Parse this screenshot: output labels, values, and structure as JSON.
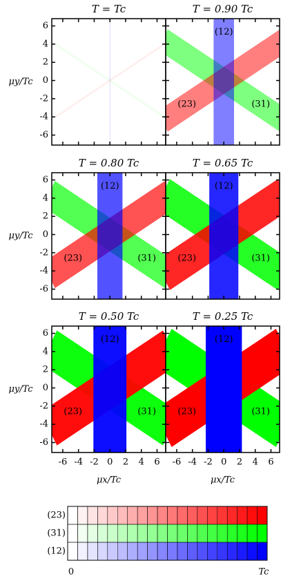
{
  "chart_data": [
    {
      "type": "phase",
      "title": "T = Tc",
      "gap": 0.06,
      "band_halfwidth": 0.12,
      "series": [
        {
          "color": "#00ff00"
        },
        {
          "color": "#ff0000"
        },
        {
          "color": "#0000ff"
        }
      ],
      "xlim": [
        -7.4,
        7.1
      ],
      "ylim": [
        -7.1,
        6.8
      ],
      "xticks": [
        -6,
        -4,
        -2,
        0,
        2,
        4,
        6
      ],
      "yticks": [
        -6,
        -4,
        -2,
        0,
        2,
        4,
        6
      ],
      "ylabel": "μy/Tc"
    },
    {
      "type": "phase",
      "title": "T = 0.90 Tc",
      "gap": 0.5,
      "band_halfwidth": 1.3,
      "series": [
        {
          "name": "(31)",
          "color": "#00ff00"
        },
        {
          "name": "(23)",
          "color": "#ff0000"
        },
        {
          "name": "(12)",
          "color": "#0000ff"
        }
      ],
      "xlim": [
        -7.4,
        7.1
      ],
      "ylim": [
        -7.1,
        6.8
      ],
      "xticks": [
        -6,
        -4,
        -2,
        0,
        2,
        4,
        6
      ],
      "yticks": [
        -6,
        -4,
        -2,
        0,
        2,
        4,
        6
      ]
    },
    {
      "type": "phase",
      "title": "T = 0.80 Tc",
      "gap": 0.68,
      "band_halfwidth": 1.6,
      "series": [
        {
          "name": "(31)",
          "color": "#00ff00"
        },
        {
          "name": "(23)",
          "color": "#ff0000"
        },
        {
          "name": "(12)",
          "color": "#0000ff"
        }
      ],
      "xlim": [
        -7.4,
        7.1
      ],
      "ylim": [
        -7.1,
        6.8
      ],
      "xticks": [
        -6,
        -4,
        -2,
        0,
        2,
        4,
        6
      ],
      "yticks": [
        -6,
        -4,
        -2,
        0,
        2,
        4,
        6
      ],
      "ylabel": "μy/Tc"
    },
    {
      "type": "phase",
      "title": "T = 0.65 Tc",
      "gap": 0.85,
      "band_halfwidth": 1.85,
      "series": [
        {
          "name": "(31)",
          "color": "#00ff00"
        },
        {
          "name": "(23)",
          "color": "#ff0000"
        },
        {
          "name": "(12)",
          "color": "#0000ff"
        }
      ],
      "xlim": [
        -7.4,
        7.1
      ],
      "ylim": [
        -7.1,
        6.8
      ],
      "xticks": [
        -6,
        -4,
        -2,
        0,
        2,
        4,
        6
      ],
      "yticks": [
        -6,
        -4,
        -2,
        0,
        2,
        4,
        6
      ]
    },
    {
      "type": "phase",
      "title": "T = 0.50 Tc",
      "gap": 0.95,
      "band_halfwidth": 2.1,
      "series": [
        {
          "name": "(31)",
          "color": "#00ff00"
        },
        {
          "name": "(23)",
          "color": "#ff0000"
        },
        {
          "name": "(12)",
          "color": "#0000ff"
        }
      ],
      "xlim": [
        -7.4,
        7.1
      ],
      "ylim": [
        -7.1,
        6.8
      ],
      "xticks": [
        -6,
        -4,
        -2,
        0,
        2,
        4,
        6
      ],
      "yticks": [
        -6,
        -4,
        -2,
        0,
        2,
        4,
        6
      ],
      "ylabel": "μy/Tc",
      "xlabel": "μx/Tc"
    },
    {
      "type": "phase",
      "title": "T = 0.25 Tc",
      "gap": 1,
      "band_halfwidth": 2.3,
      "series": [
        {
          "name": "(31)",
          "color": "#00ff00"
        },
        {
          "name": "(23)",
          "color": "#ff0000"
        },
        {
          "name": "(12)",
          "color": "#0000ff"
        }
      ],
      "xlim": [
        -7.4,
        7.1
      ],
      "ylim": [
        -7.1,
        6.8
      ],
      "xticks": [
        -6,
        -4,
        -2,
        0,
        2,
        4,
        6
      ],
      "yticks": [
        -6,
        -4,
        -2,
        0,
        2,
        4,
        6
      ],
      "xlabel": "μx/Tc"
    }
  ],
  "colorbar": {
    "rows": [
      {
        "name": "(23)",
        "color": "#ff0000"
      },
      {
        "name": "(31)",
        "color": "#00ff00"
      },
      {
        "name": "(12)",
        "color": "#0000ff"
      }
    ],
    "lim": [
      0,
      1
    ],
    "min_label": "0",
    "max_label": "Tc"
  }
}
